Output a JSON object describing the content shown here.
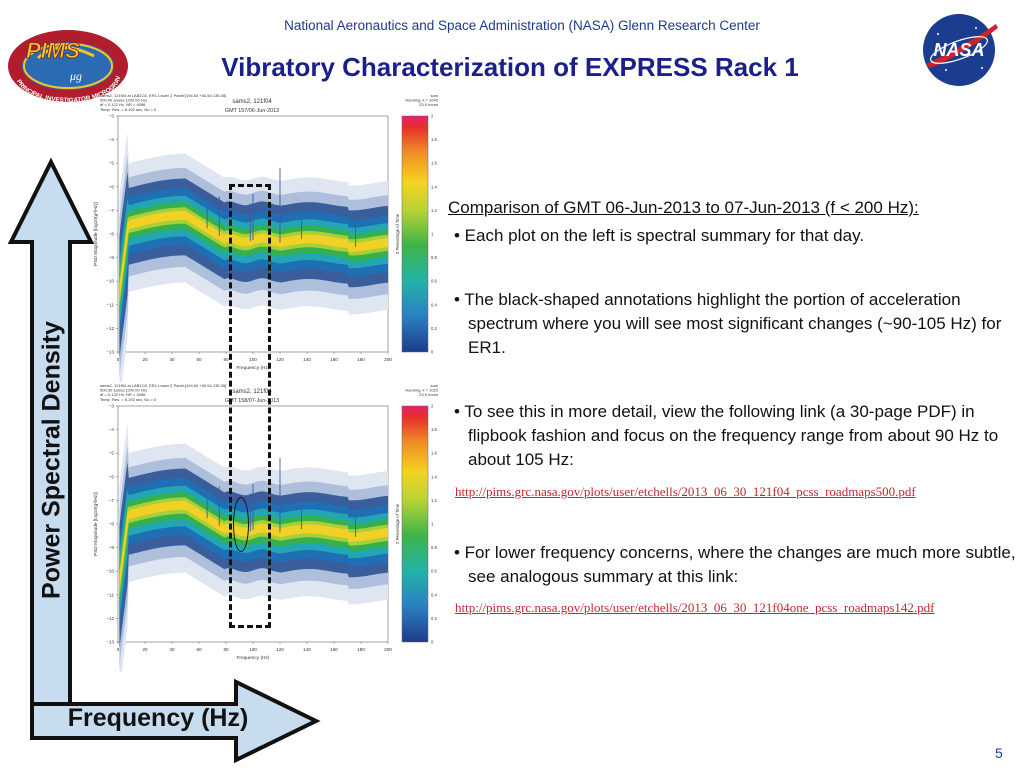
{
  "header": {
    "org_line": "National Aeronautics and Space Administration (NASA) Glenn Research Center",
    "title": "Vibratory Characterization of EXPRESS Rack 1"
  },
  "logos": {
    "left": "PIMS",
    "left_sub": "μg",
    "left_ring_text": "PRINCIPAL INVESTIGATOR MICROGRAVITY SERVICES",
    "right": "NASA"
  },
  "axes": {
    "y_label": "Power Spectral Density",
    "x_label": "Frequency (Hz)"
  },
  "plots": [
    {
      "id": "top",
      "header_left": [
        "sams2, 121f04 at LAB1O2, ER1 Lower Z Panel:[194.64 +40.54 135.35]",
        "500.00 sa/sec (200.00 Hz)",
        "df = 0.122 Hz, NR = 4096",
        "Temp. Res. = 8.192 sec, No = 0"
      ],
      "title": "sams2, 121f04",
      "subtitle": "GMT 157/06-Jun-2013",
      "header_right": [
        "sum",
        "Hanning, k = 1045",
        "23.5 hours"
      ],
      "ylabel": "PSD Magnitude [log10(g²/Hz)]",
      "xlabel": "Frequency (Hz)",
      "xticks": [
        "0",
        "20",
        "40",
        "60",
        "80",
        "100",
        "120",
        "140",
        "160",
        "180",
        "200"
      ],
      "yticks": [
        "−3",
        "−4",
        "−5",
        "−6",
        "−7",
        "−8",
        "−9",
        "−10",
        "−11",
        "−12",
        "−13"
      ],
      "cbar_ticks": [
        "2",
        "1.8",
        "1.6",
        "1.4",
        "1.2",
        "1",
        "0.8",
        "0.6",
        "0.4",
        "0.2",
        "0"
      ],
      "cbar_label": "Σ Percentage of Time"
    },
    {
      "id": "bottom",
      "header_left": [
        "sams2, 121f04 at LAB1O2, ER1 Lower Z Panel:[194.64 +40.54 135.35]",
        "500.00 sa/sec (200.00 Hz)",
        "df = 0.122 Hz, NR = 4096",
        "Temp. Res. = 8.192 sec, No = 0"
      ],
      "title": "sams2, 121f04",
      "subtitle": "GMT 158/07-Jun-2013",
      "header_right": [
        "sum",
        "Hanning, k = 1023",
        "23.5 hours"
      ],
      "ylabel": "PSD Magnitude [log10(g²/Hz)]",
      "xlabel": "Frequency (Hz)",
      "xticks": [
        "0",
        "20",
        "40",
        "60",
        "80",
        "100",
        "120",
        "140",
        "160",
        "180",
        "200"
      ],
      "yticks": [
        "−3",
        "−4",
        "−5",
        "−6",
        "−7",
        "−8",
        "−9",
        "−10",
        "−11",
        "−12",
        "−13"
      ],
      "cbar_ticks": [
        "2",
        "1.8",
        "1.6",
        "1.4",
        "1.2",
        "1",
        "0.8",
        "0.6",
        "0.4",
        "0.2",
        "0"
      ],
      "cbar_label": "Σ Percentage of Time"
    }
  ],
  "text": {
    "heading": "Comparison of GMT 06-Jun-2013 to 07-Jun-2013 (f < 200 Hz):",
    "bullet_1": "• Each plot on the left is spectral summary for that day.",
    "bullet_2": "• The black-shaped annotations highlight the portion of acceleration spectrum where you will see most significant changes (~90-105 Hz) for ER1.",
    "bullet_3": "• To see this in more detail, view the following link (a 30-page PDF) in flipbook fashion and focus on the frequency range from about 90 Hz to about 105 Hz:",
    "link_1": "http://pims.grc.nasa.gov/plots/user/etchells/2013_06_30_121f04_pcss_roadmaps500.pdf",
    "bullet_4": "• For lower frequency concerns, where the changes are much more subtle, see analogous summary at this link:",
    "link_2": "http://pims.grc.nasa.gov/plots/user/etchells/2013_06_30_121f04one_pcss_roadmaps142.pdf"
  },
  "footer": {
    "page_number": "5"
  },
  "colors": {
    "title": "#1b1f8a",
    "header": "#1f3a8a",
    "link": "#c0282d",
    "arrow_fill": "#c7dcef",
    "arrow_stroke": "#111111"
  }
}
